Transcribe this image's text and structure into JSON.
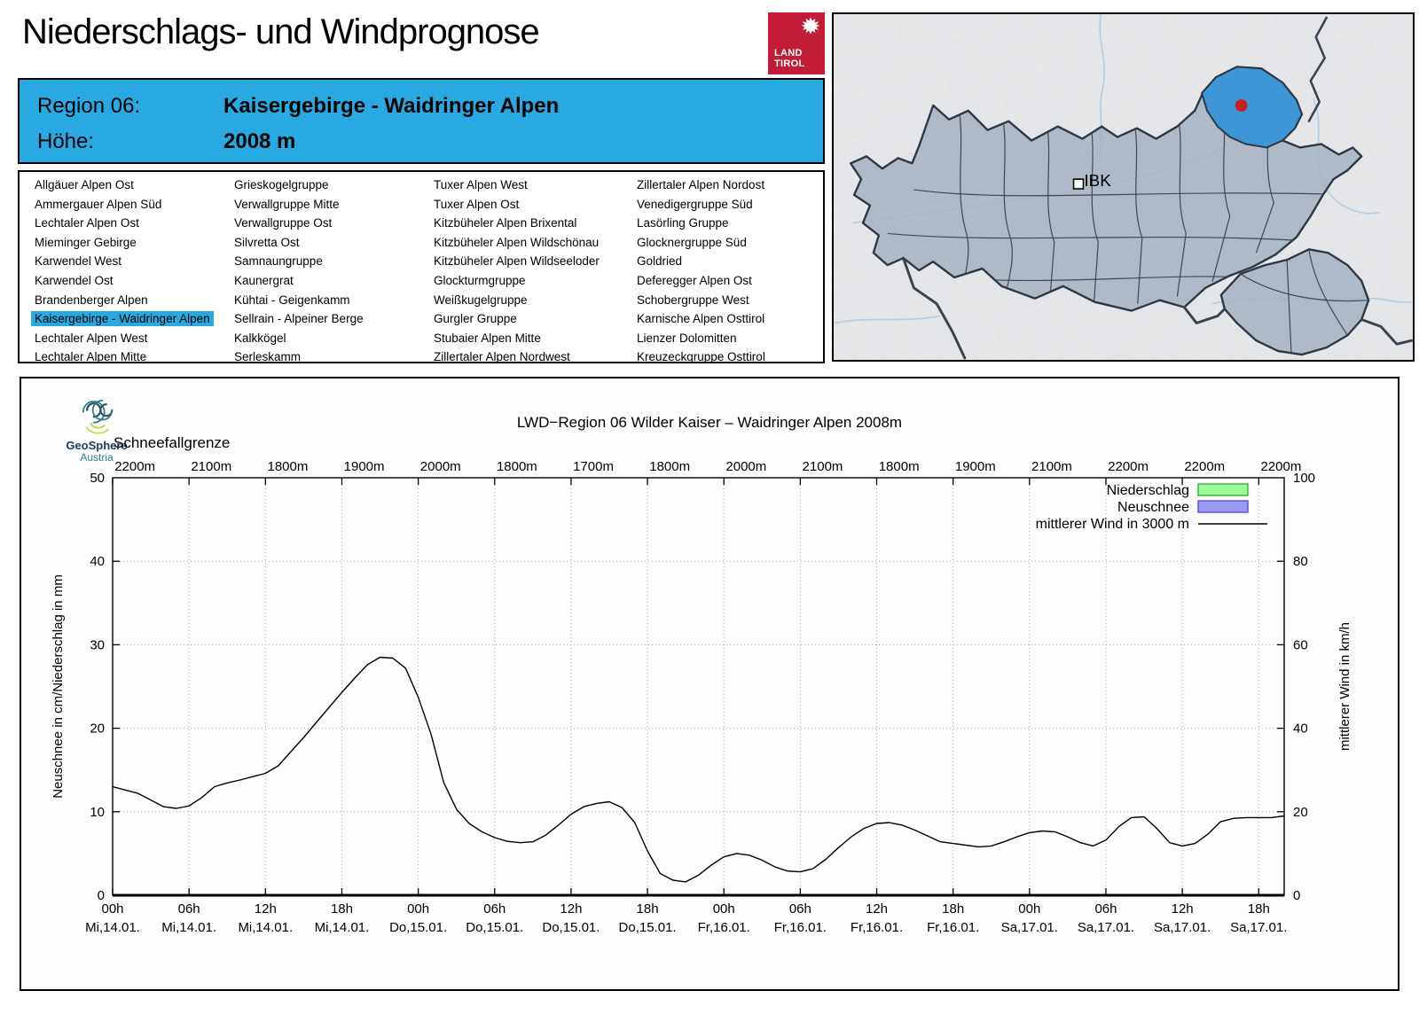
{
  "page": {
    "title": "Niederschlags- und Windprognose"
  },
  "logo": {
    "land": "LAND",
    "tirol": "TIROL"
  },
  "region_header": {
    "region_label": "Region 06:",
    "region_value": "Kaisergebirge - Waidringer Alpen",
    "altitude_label": "Höhe:",
    "altitude_value": "2008 m",
    "bg_color": "#29a9e1"
  },
  "region_list": {
    "selected": "Kaisergebirge - Waidringer Alpen",
    "columns": [
      [
        "Allgäuer Alpen Ost",
        "Ammergauer Alpen Süd",
        "Lechtaler Alpen Ost",
        "Mieminger Gebirge",
        "Karwendel West",
        "Karwendel Ost",
        "Brandenberger Alpen",
        "Kaisergebirge - Waidringer Alpen",
        "Lechtaler Alpen West",
        "Lechtaler Alpen Mitte"
      ],
      [
        "Grieskogelgruppe",
        "Verwallgruppe Mitte",
        "Verwallgruppe Ost",
        "Silvretta Ost",
        "Samnaungruppe",
        "Kaunergrat",
        "Kühtai - Geigenkamm",
        "Sellrain - Alpeiner Berge",
        "Kalkkögel",
        "Serleskamm"
      ],
      [
        "Tuxer Alpen West",
        "Tuxer Alpen Ost",
        "Kitzbüheler Alpen Brixental",
        "Kitzbüheler Alpen Wildschönau",
        "Kitzbüheler Alpen Wildseeloder",
        "Glockturmgruppe",
        "Weißkugelgruppe",
        "Gurgler Gruppe",
        "Stubaier Alpen Mitte",
        "Zillertaler Alpen Nordwest"
      ],
      [
        "Zillertaler Alpen Nordost",
        "Venedigergruppe Süd",
        "Lasörling Gruppe",
        "Glocknergruppe Süd",
        "Goldried",
        "Deferegger Alpen Ost",
        "Schobergruppe West",
        "Karnische Alpen Osttirol",
        "Lienzer Dolomitten",
        "Kreuzeckgruppe Osttirol"
      ]
    ]
  },
  "map": {
    "marker_label": "IBK",
    "highlight_color": "#3f96d6",
    "region_fill": "#a6b2c1",
    "dot_color": "#c42020"
  },
  "geosphere": {
    "line1": "GeoSphere",
    "line2": "Austria"
  },
  "chart_data": {
    "type": "line",
    "title": "LWD−Region 06 Wilder Kaiser – Waidringer Alpen 2008m",
    "x2_label": "Schneefallgrenze",
    "schneefallgrenze_labels": [
      "2200m",
      "2100m",
      "1800m",
      "1900m",
      "2000m",
      "1800m",
      "1700m",
      "1800m",
      "2000m",
      "2100m",
      "1800m",
      "1900m",
      "2100m",
      "2200m",
      "2200m",
      "2200m"
    ],
    "schneefallgrenze_m": [
      2200,
      2100,
      1800,
      1900,
      2000,
      1800,
      1700,
      1800,
      2000,
      2100,
      1800,
      1900,
      2100,
      2200,
      2200,
      2200
    ],
    "x_tick_hours": [
      "00h",
      "06h",
      "12h",
      "18h",
      "00h",
      "06h",
      "12h",
      "18h",
      "00h",
      "06h",
      "12h",
      "18h",
      "00h",
      "06h",
      "12h",
      "18h"
    ],
    "x_tick_days": [
      "Mi,14.01.",
      "Mi,14.01.",
      "Mi,14.01.",
      "Mi,14.01.",
      "Do,15.01.",
      "Do,15.01.",
      "Do,15.01.",
      "Do,15.01.",
      "Fr,16.01.",
      "Fr,16.01.",
      "Fr,16.01.",
      "Fr,16.01.",
      "Sa,17.01.",
      "Sa,17.01.",
      "Sa,17.01.",
      "Sa,17.01."
    ],
    "ylabel_left": "Neuschnee in cm/Niederschlag in mm",
    "ylabel_right": "mittlerer Wind in km/h",
    "ylim_left": [
      0,
      50
    ],
    "ylim_right": [
      0,
      100
    ],
    "yticks_left": [
      0,
      10,
      20,
      30,
      40,
      50
    ],
    "yticks_right": [
      0,
      20,
      40,
      60,
      80,
      100
    ],
    "x_range_hours": [
      0,
      92
    ],
    "tick_interval_hours": 6,
    "grid": true,
    "legend_position": "top-right",
    "legend": [
      {
        "label": "Niederschlag",
        "type": "box",
        "fill": "#9cfc9c",
        "stroke": "#35b135"
      },
      {
        "label": "Neuschnee",
        "type": "box",
        "fill": "#9a9af2",
        "stroke": "#5454d0"
      },
      {
        "label": "mittlerer Wind in 3000 m",
        "type": "line",
        "stroke": "#000000"
      }
    ],
    "series": [
      {
        "name": "mittlerer Wind in 3000 m",
        "axis": "right",
        "unit": "km/h",
        "t_hours": [
          0,
          2,
          3,
          4,
          5,
          6,
          7,
          8,
          9,
          10,
          11,
          12,
          13,
          14,
          15,
          16,
          17,
          18,
          19,
          20,
          21,
          22,
          23,
          24,
          25,
          26,
          27,
          28,
          29,
          30,
          31,
          32,
          33,
          34,
          35,
          36,
          37,
          38,
          39,
          40,
          41,
          42,
          43,
          44,
          45,
          46,
          47,
          48,
          49,
          50,
          51,
          52,
          53,
          54,
          55,
          56,
          57,
          58,
          59,
          60,
          61,
          62,
          63,
          64,
          65,
          66,
          67,
          68,
          69,
          70,
          71,
          72,
          73,
          74,
          75,
          76,
          77,
          78,
          79,
          80,
          81,
          82,
          83,
          84,
          85,
          86,
          87,
          88,
          89,
          90,
          91,
          92
        ],
        "values": [
          26,
          24.4,
          22.8,
          21.2,
          20.8,
          21.4,
          23.4,
          26,
          26.9,
          27.6,
          28.4,
          29.2,
          31,
          34.4,
          37.8,
          41.4,
          45,
          48.6,
          52,
          55.2,
          57,
          56.8,
          54.4,
          47.4,
          38.6,
          27,
          20.6,
          17.2,
          15.2,
          13.8,
          12.9,
          12.6,
          12.8,
          14.4,
          16.8,
          19.4,
          21.2,
          22,
          22.4,
          21,
          17.4,
          10.6,
          5.2,
          3.6,
          3.2,
          4.8,
          7.2,
          9.2,
          10,
          9.6,
          8.4,
          6.8,
          5.8,
          5.6,
          6.4,
          8.6,
          11.4,
          14,
          16,
          17.2,
          17.4,
          16.8,
          15.6,
          14.2,
          12.8,
          12.4,
          12,
          11.6,
          11.8,
          12.8,
          14,
          15,
          15.4,
          15.2,
          14,
          12.6,
          11.8,
          13.2,
          16.4,
          18.6,
          18.8,
          16,
          12.6,
          11.8,
          12.4,
          14.6,
          17.6,
          18.4,
          18.6,
          18.6,
          18.6,
          19
        ]
      },
      {
        "name": "Niederschlag",
        "axis": "left",
        "unit": "mm",
        "t_hours": [],
        "values": []
      },
      {
        "name": "Neuschnee",
        "axis": "left",
        "unit": "cm",
        "t_hours": [],
        "values": []
      }
    ]
  }
}
